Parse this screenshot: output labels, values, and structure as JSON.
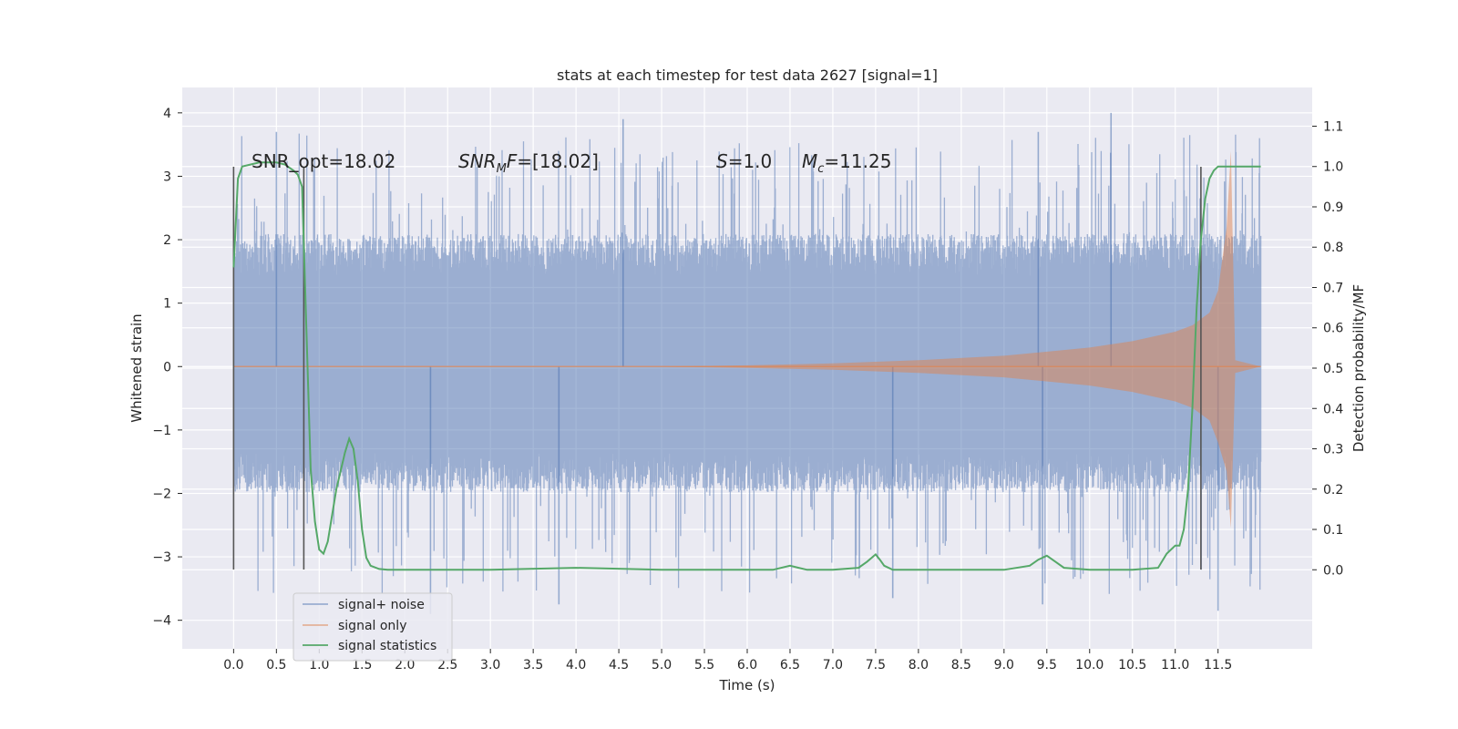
{
  "chart_data": {
    "type": "line",
    "title": "stats at each timestep for test data 2627 [signal=1]",
    "xlabel": "Time (s)",
    "ylabel": "Whitened strain",
    "y2label": "Detection probability/MF",
    "xlim": [
      -0.6,
      12.6
    ],
    "ylim": [
      -4.45,
      4.4
    ],
    "y2lim": [
      -0.196,
      1.196
    ],
    "x_ticks": [
      0.0,
      0.5,
      1.0,
      1.5,
      2.0,
      2.5,
      3.0,
      3.5,
      4.0,
      4.5,
      5.0,
      5.5,
      6.0,
      6.5,
      7.0,
      7.5,
      8.0,
      8.5,
      9.0,
      9.5,
      10.0,
      10.5,
      11.0,
      11.5
    ],
    "x_tick_labels": [
      "0.0",
      "0.5",
      "1.0",
      "1.5",
      "2.0",
      "2.5",
      "3.0",
      "3.5",
      "4.0",
      "4.5",
      "5.0",
      "5.5",
      "6.0",
      "6.5",
      "7.0",
      "7.5",
      "8.0",
      "8.5",
      "9.0",
      "9.5",
      "10.0",
      "10.5",
      "11.0",
      "11.5"
    ],
    "y_ticks": [
      -4,
      -3,
      -2,
      -1,
      0,
      1,
      2,
      3,
      4
    ],
    "y_tick_labels": [
      "−4",
      "−3",
      "−2",
      "−1",
      "0",
      "1",
      "2",
      "3",
      "4"
    ],
    "y2_ticks": [
      0.0,
      0.1,
      0.2,
      0.3,
      0.4,
      0.5,
      0.6,
      0.7,
      0.8,
      0.9,
      1.0,
      1.1
    ],
    "y2_tick_labels": [
      "0.0",
      "0.1",
      "0.2",
      "0.3",
      "0.4",
      "0.5",
      "0.6",
      "0.7",
      "0.8",
      "0.9",
      "1.0",
      "1.1"
    ],
    "grid": true,
    "legend_position": "lower-left",
    "series": [
      {
        "name": "signal+ noise",
        "color": "#4c72b0",
        "axis": "left",
        "x_range": [
          0.0,
          12.0
        ],
        "typical_envelope": [
          -1.8,
          1.9
        ],
        "min_max": [
          -3.9,
          4.0
        ]
      },
      {
        "name": "signal only",
        "color": "#dd8452",
        "axis": "left",
        "x_range": [
          0.0,
          12.0
        ],
        "envelope": {
          "x": [
            0.0,
            5.0,
            6.0,
            7.0,
            8.0,
            9.0,
            10.0,
            10.5,
            11.0,
            11.2,
            11.4,
            11.5,
            11.6,
            11.65,
            11.7,
            12.0
          ],
          "amplitude": [
            0.0,
            0.0,
            0.02,
            0.05,
            0.1,
            0.17,
            0.3,
            0.4,
            0.55,
            0.65,
            0.85,
            1.2,
            2.2,
            3.4,
            0.1,
            0.0
          ]
        }
      },
      {
        "name": "signal statistics",
        "color": "#55a868",
        "axis": "right",
        "x": [
          0.0,
          0.05,
          0.1,
          0.2,
          0.3,
          0.5,
          0.6,
          0.7,
          0.75,
          0.8,
          0.85,
          0.9,
          0.95,
          1.0,
          1.05,
          1.1,
          1.2,
          1.3,
          1.35,
          1.4,
          1.45,
          1.5,
          1.55,
          1.6,
          1.7,
          1.8,
          2.0,
          3.0,
          4.0,
          5.0,
          6.0,
          6.3,
          6.5,
          6.6,
          6.7,
          7.0,
          7.3,
          7.4,
          7.5,
          7.55,
          7.6,
          7.7,
          7.8,
          8.0,
          8.5,
          9.0,
          9.3,
          9.4,
          9.5,
          9.6,
          9.7,
          10.0,
          10.5,
          10.8,
          10.9,
          11.0,
          11.05,
          11.1,
          11.15,
          11.2,
          11.25,
          11.3,
          11.35,
          11.4,
          11.45,
          11.5,
          11.6,
          11.7,
          12.0
        ],
        "values": [
          0.75,
          0.97,
          1.0,
          1.005,
          1.01,
          1.01,
          1.005,
          0.99,
          0.98,
          0.95,
          0.6,
          0.25,
          0.12,
          0.05,
          0.04,
          0.07,
          0.2,
          0.29,
          0.325,
          0.3,
          0.22,
          0.1,
          0.03,
          0.01,
          0.002,
          0.0,
          0.0,
          0.0,
          0.005,
          0.0,
          0.0,
          0.0,
          0.01,
          0.005,
          0.0,
          0.0,
          0.005,
          0.02,
          0.038,
          0.025,
          0.01,
          0.0,
          0.0,
          0.0,
          0.0,
          0.0,
          0.01,
          0.025,
          0.035,
          0.02,
          0.005,
          0.0,
          0.0,
          0.005,
          0.04,
          0.06,
          0.06,
          0.1,
          0.2,
          0.4,
          0.65,
          0.82,
          0.92,
          0.97,
          0.99,
          1.0,
          1.0,
          1.0,
          1.0
        ]
      }
    ],
    "vertical_lines": [
      0.0,
      0.82,
      11.3
    ],
    "annotations": [
      {
        "text": "SNR_opt=18.02",
        "x": 0.2,
        "y": 3.2
      },
      {
        "text_main": "SNR",
        "text_sub": "M",
        "text_tail": "F=[18.02]",
        "x": 2.6,
        "y": 3.2
      },
      {
        "text_main": "S",
        "text_tail": "=1.0",
        "x": 5.6,
        "y": 3.2
      },
      {
        "text_main": "M",
        "text_sub": "c",
        "text_tail": "=11.25",
        "x": 6.6,
        "y": 3.2
      }
    ]
  }
}
